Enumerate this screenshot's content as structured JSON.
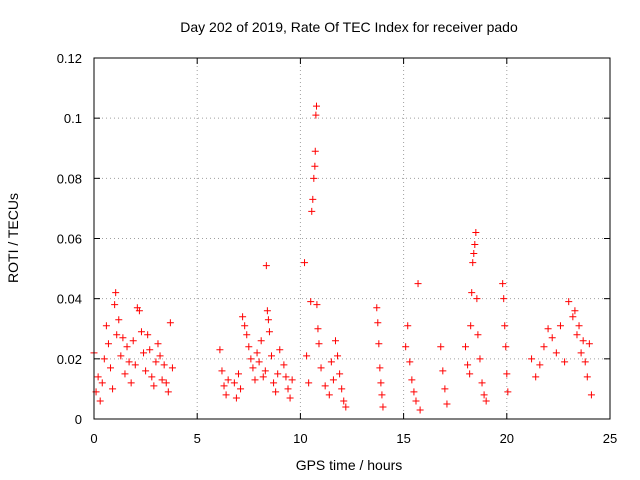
{
  "chart_data": {
    "type": "scatter",
    "title": "Day 202 of 2019, Rate Of TEC Index for receiver pado",
    "xlabel": "GPS time / hours",
    "ylabel": "ROTI / TECUs",
    "xlim": [
      0,
      25
    ],
    "ylim": [
      0,
      0.12
    ],
    "x_ticks": [
      0,
      5,
      10,
      15,
      20,
      25
    ],
    "x_tick_labels": [
      "0",
      "5",
      "10",
      "15",
      "20",
      "25"
    ],
    "y_ticks": [
      0,
      0.02,
      0.04,
      0.06,
      0.08,
      0.1,
      0.12
    ],
    "y_tick_labels": [
      "0",
      "0.02",
      "0.04",
      "0.06",
      "0.08",
      "0.1",
      "0.12"
    ],
    "grid": true,
    "marker": "plus",
    "color": "#ff0000",
    "series": [
      {
        "name": "ROTI",
        "points": [
          [
            0.0,
            0.022
          ],
          [
            0.1,
            0.009
          ],
          [
            0.2,
            0.014
          ],
          [
            0.3,
            0.006
          ],
          [
            0.4,
            0.012
          ],
          [
            0.5,
            0.02
          ],
          [
            0.6,
            0.031
          ],
          [
            0.7,
            0.025
          ],
          [
            0.8,
            0.017
          ],
          [
            0.9,
            0.01
          ],
          [
            1.0,
            0.038
          ],
          [
            1.05,
            0.042
          ],
          [
            1.1,
            0.028
          ],
          [
            1.2,
            0.033
          ],
          [
            1.3,
            0.021
          ],
          [
            1.4,
            0.027
          ],
          [
            1.5,
            0.015
          ],
          [
            1.6,
            0.024
          ],
          [
            1.7,
            0.019
          ],
          [
            1.8,
            0.012
          ],
          [
            1.9,
            0.026
          ],
          [
            2.0,
            0.018
          ],
          [
            2.1,
            0.037
          ],
          [
            2.2,
            0.036
          ],
          [
            2.3,
            0.029
          ],
          [
            2.4,
            0.022
          ],
          [
            2.5,
            0.016
          ],
          [
            2.6,
            0.028
          ],
          [
            2.7,
            0.023
          ],
          [
            2.8,
            0.014
          ],
          [
            2.9,
            0.011
          ],
          [
            3.0,
            0.019
          ],
          [
            3.1,
            0.025
          ],
          [
            3.2,
            0.021
          ],
          [
            3.3,
            0.013
          ],
          [
            3.4,
            0.018
          ],
          [
            3.5,
            0.012
          ],
          [
            3.6,
            0.009
          ],
          [
            3.7,
            0.032
          ],
          [
            3.8,
            0.017
          ],
          [
            6.1,
            0.023
          ],
          [
            6.2,
            0.016
          ],
          [
            6.3,
            0.011
          ],
          [
            6.4,
            0.008
          ],
          [
            6.5,
            0.013
          ],
          [
            6.8,
            0.012
          ],
          [
            6.9,
            0.007
          ],
          [
            7.0,
            0.015
          ],
          [
            7.1,
            0.01
          ],
          [
            7.2,
            0.034
          ],
          [
            7.3,
            0.031
          ],
          [
            7.4,
            0.028
          ],
          [
            7.5,
            0.024
          ],
          [
            7.6,
            0.02
          ],
          [
            7.7,
            0.017
          ],
          [
            7.8,
            0.013
          ],
          [
            7.9,
            0.022
          ],
          [
            8.0,
            0.019
          ],
          [
            8.1,
            0.026
          ],
          [
            8.2,
            0.014
          ],
          [
            8.3,
            0.016
          ],
          [
            8.35,
            0.051
          ],
          [
            8.4,
            0.036
          ],
          [
            8.45,
            0.033
          ],
          [
            8.5,
            0.029
          ],
          [
            8.6,
            0.021
          ],
          [
            8.7,
            0.012
          ],
          [
            8.8,
            0.009
          ],
          [
            8.9,
            0.015
          ],
          [
            9.0,
            0.023
          ],
          [
            9.2,
            0.018
          ],
          [
            9.3,
            0.014
          ],
          [
            9.4,
            0.01
          ],
          [
            9.5,
            0.007
          ],
          [
            9.6,
            0.013
          ],
          [
            10.2,
            0.052
          ],
          [
            10.3,
            0.021
          ],
          [
            10.4,
            0.012
          ],
          [
            10.5,
            0.039
          ],
          [
            10.55,
            0.069
          ],
          [
            10.6,
            0.073
          ],
          [
            10.65,
            0.08
          ],
          [
            10.7,
            0.084
          ],
          [
            10.72,
            0.089
          ],
          [
            10.75,
            0.101
          ],
          [
            10.78,
            0.104
          ],
          [
            10.8,
            0.038
          ],
          [
            10.85,
            0.03
          ],
          [
            10.9,
            0.025
          ],
          [
            11.0,
            0.017
          ],
          [
            11.2,
            0.011
          ],
          [
            11.4,
            0.008
          ],
          [
            11.5,
            0.019
          ],
          [
            11.6,
            0.013
          ],
          [
            11.7,
            0.026
          ],
          [
            11.8,
            0.021
          ],
          [
            11.9,
            0.015
          ],
          [
            12.0,
            0.01
          ],
          [
            12.1,
            0.006
          ],
          [
            12.2,
            0.004
          ],
          [
            13.7,
            0.037
          ],
          [
            13.75,
            0.032
          ],
          [
            13.8,
            0.025
          ],
          [
            13.85,
            0.017
          ],
          [
            13.9,
            0.012
          ],
          [
            13.95,
            0.008
          ],
          [
            14.0,
            0.004
          ],
          [
            15.1,
            0.024
          ],
          [
            15.2,
            0.031
          ],
          [
            15.3,
            0.019
          ],
          [
            15.4,
            0.013
          ],
          [
            15.5,
            0.009
          ],
          [
            15.6,
            0.006
          ],
          [
            15.7,
            0.045
          ],
          [
            15.8,
            0.003
          ],
          [
            16.8,
            0.024
          ],
          [
            16.9,
            0.016
          ],
          [
            17.0,
            0.01
          ],
          [
            17.1,
            0.005
          ],
          [
            18.0,
            0.024
          ],
          [
            18.1,
            0.018
          ],
          [
            18.2,
            0.015
          ],
          [
            18.25,
            0.031
          ],
          [
            18.3,
            0.042
          ],
          [
            18.35,
            0.052
          ],
          [
            18.4,
            0.055
          ],
          [
            18.45,
            0.058
          ],
          [
            18.5,
            0.062
          ],
          [
            18.55,
            0.04
          ],
          [
            18.6,
            0.028
          ],
          [
            18.7,
            0.02
          ],
          [
            18.8,
            0.012
          ],
          [
            18.9,
            0.008
          ],
          [
            19.0,
            0.006
          ],
          [
            19.8,
            0.045
          ],
          [
            19.85,
            0.04
          ],
          [
            19.9,
            0.031
          ],
          [
            19.95,
            0.024
          ],
          [
            20.0,
            0.015
          ],
          [
            20.05,
            0.009
          ],
          [
            21.2,
            0.02
          ],
          [
            21.4,
            0.014
          ],
          [
            21.6,
            0.018
          ],
          [
            21.8,
            0.024
          ],
          [
            22.0,
            0.03
          ],
          [
            22.2,
            0.027
          ],
          [
            22.4,
            0.022
          ],
          [
            22.6,
            0.031
          ],
          [
            22.8,
            0.019
          ],
          [
            23.0,
            0.039
          ],
          [
            23.2,
            0.034
          ],
          [
            23.3,
            0.036
          ],
          [
            23.4,
            0.028
          ],
          [
            23.5,
            0.031
          ],
          [
            23.6,
            0.022
          ],
          [
            23.7,
            0.026
          ],
          [
            23.8,
            0.019
          ],
          [
            23.9,
            0.014
          ],
          [
            24.0,
            0.025
          ],
          [
            24.1,
            0.008
          ]
        ]
      }
    ]
  }
}
